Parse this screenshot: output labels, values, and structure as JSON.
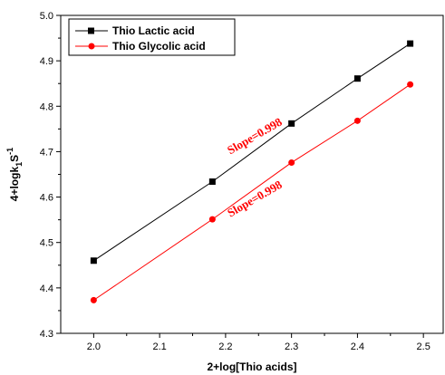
{
  "chart_data": {
    "type": "line",
    "title": "",
    "xlabel": "2+log[Thio acids]",
    "ylabel": "4+logk",
    "ylabel_sub": "1",
    "ylabel_suffix": "S",
    "ylabel_sup": "-1",
    "xlim": [
      1.95,
      2.53
    ],
    "ylim": [
      4.3,
      5.0
    ],
    "xticks": [
      2.0,
      2.1,
      2.2,
      2.3,
      2.4,
      2.5
    ],
    "xtick_labels": [
      "2.0",
      "2.1",
      "2.2",
      "2.3",
      "2.4",
      "2.5"
    ],
    "yticks": [
      4.3,
      4.4,
      4.5,
      4.6,
      4.7,
      4.8,
      4.9,
      5.0
    ],
    "ytick_labels": [
      "4.3",
      "4.4",
      "4.5",
      "4.6",
      "4.7",
      "4.8",
      "4.9",
      "5.0"
    ],
    "grid": false,
    "legend_position": "top-left",
    "series": [
      {
        "name": "Thio Lactic acid",
        "color": "#000000",
        "marker": "square",
        "x": [
          2.0,
          2.18,
          2.3,
          2.4,
          2.48
        ],
        "y": [
          4.46,
          4.634,
          4.762,
          4.861,
          4.938
        ]
      },
      {
        "name": "Thio Glycolic acid",
        "color": "#ff0000",
        "marker": "circle",
        "x": [
          2.0,
          2.18,
          2.3,
          2.4,
          2.48
        ],
        "y": [
          4.373,
          4.551,
          4.676,
          4.768,
          4.848
        ]
      }
    ],
    "annotations": [
      {
        "text": "Slope=0.998",
        "x": 2.247,
        "y": 4.727,
        "color": "#ff0000"
      },
      {
        "text": "Slope=0.998",
        "x": 2.247,
        "y": 4.589,
        "color": "#ff0000"
      }
    ]
  }
}
